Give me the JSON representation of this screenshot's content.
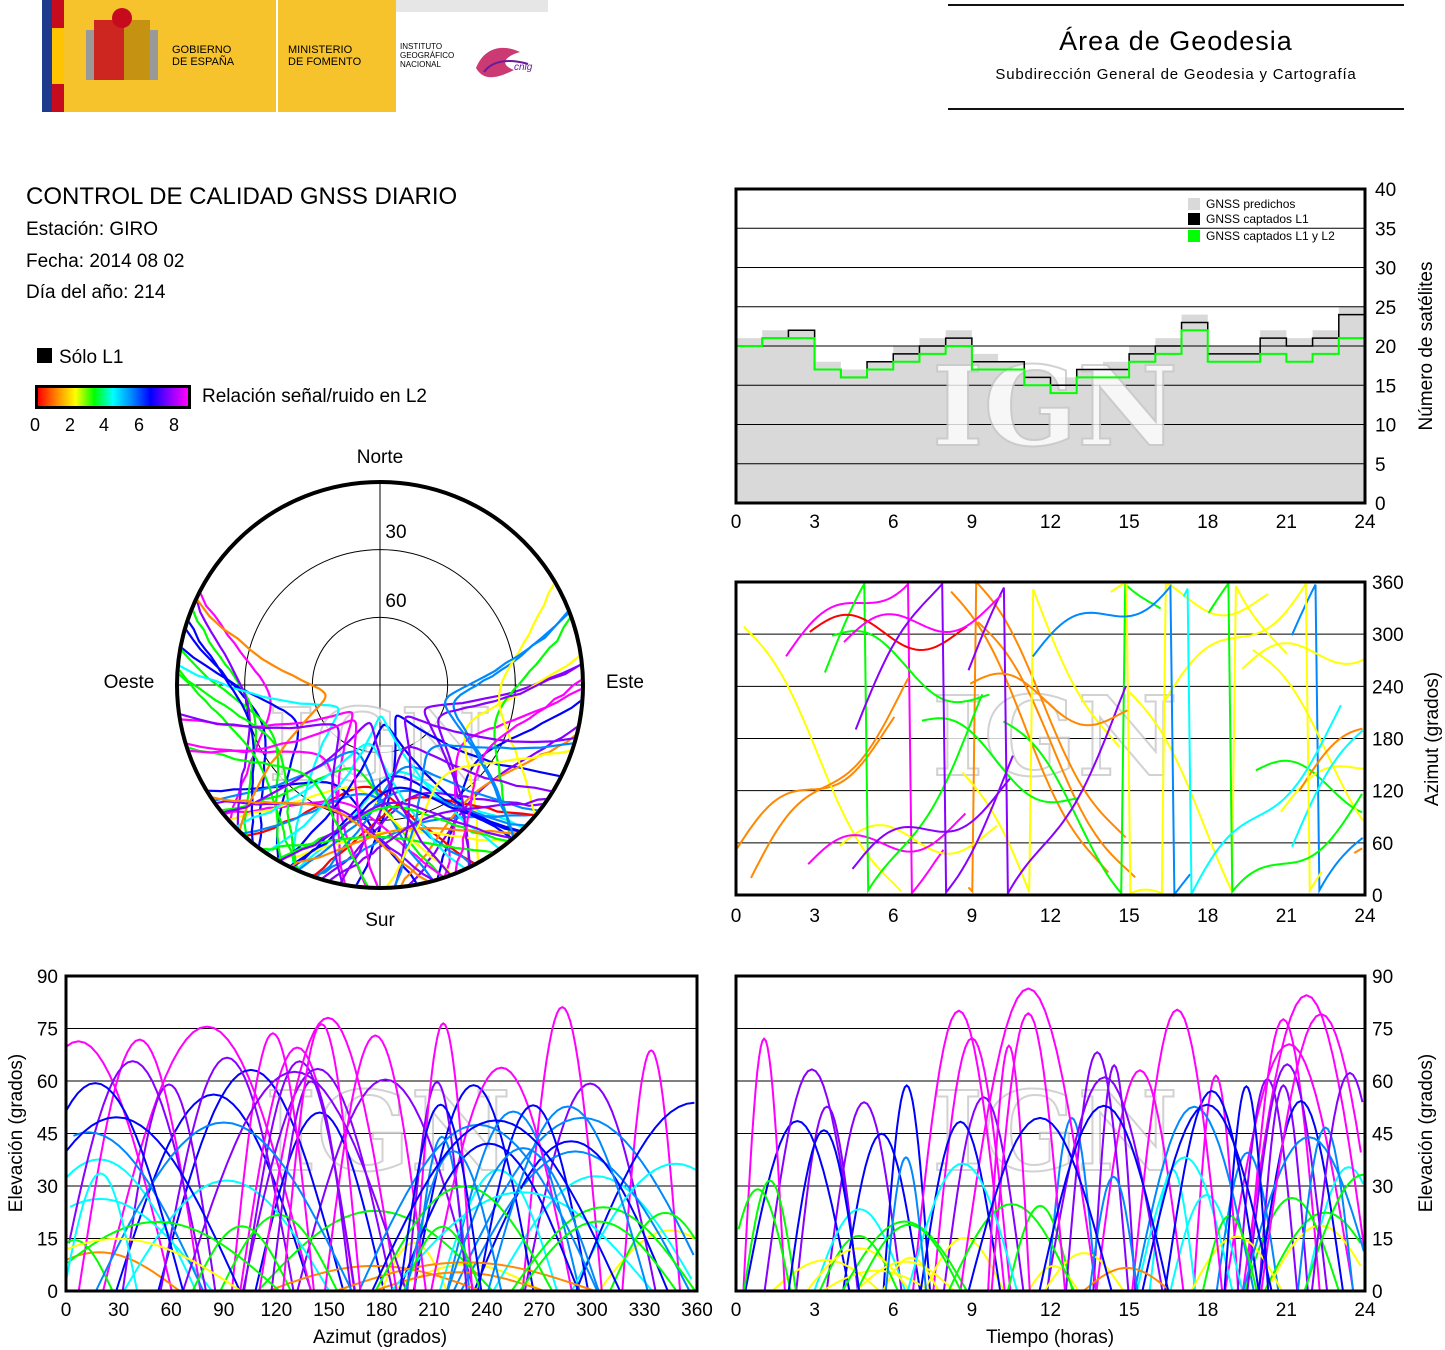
{
  "header": {
    "gobierno": "GOBIERNO\nDE ESPAÑA",
    "ministerio": "MINISTERIO\nDE FOMENTO",
    "instituto": "INSTITUTO\nGEOGRÁFICO\nNACIONAL",
    "cnig": "cnig",
    "area_title": "Área de Geodesia",
    "area_subtitle": "Subdirección General de Geodesia y Cartografía"
  },
  "info": {
    "title": "CONTROL DE CALIDAD GNSS DIARIO",
    "station": "Estación: GIRO",
    "date": "Fecha: 2014 08 02",
    "doy": "Día del año: 214"
  },
  "legend": {
    "solo_l1": "Sólo L1",
    "snr_label": "Relación señal/ruido en L2",
    "snr_ticks": [
      "0",
      "2",
      "4",
      "6",
      "8"
    ],
    "colors": [
      "#ff0000",
      "#ff8800",
      "#ffff00",
      "#00ff00",
      "#00ffff",
      "#0088ff",
      "#0000ff",
      "#8800ff",
      "#ff00ff"
    ]
  },
  "watermark": "IGN",
  "chart_data": [
    {
      "type": "polar",
      "name": "skyplot",
      "labels": {
        "north": "Norte",
        "south": "Sur",
        "east": "Este",
        "west": "Oeste"
      },
      "rings": [
        "30",
        "60"
      ]
    },
    {
      "type": "line",
      "name": "satellite-count",
      "ylabel": "Número de satélites",
      "xlim": [
        0,
        24
      ],
      "ylim": [
        0,
        40
      ],
      "xticks": [
        "0",
        "3",
        "6",
        "9",
        "12",
        "15",
        "18",
        "21",
        "24"
      ],
      "yticks": [
        "0",
        "5",
        "10",
        "15",
        "20",
        "25",
        "30",
        "35",
        "40"
      ],
      "legend": [
        "GNSS predichos",
        "GNSS captados L1",
        "GNSS captados L1 y L2"
      ],
      "legend_colors": [
        "#d9d9d9",
        "#000000",
        "#00ff00"
      ],
      "series": [
        {
          "name": "GNSS predichos",
          "x": [
            0,
            1,
            2,
            3,
            4,
            5,
            6,
            7,
            8,
            9,
            10,
            11,
            12,
            13,
            14,
            15,
            16,
            17,
            18,
            19,
            20,
            21,
            22,
            23,
            24
          ],
          "values": [
            21,
            22,
            22,
            18,
            17,
            18,
            20,
            21,
            22,
            19,
            18,
            17,
            16,
            17,
            18,
            20,
            21,
            24,
            20,
            20,
            22,
            21,
            22,
            25,
            25
          ]
        },
        {
          "name": "GNSS captados L1",
          "x": [
            0,
            1,
            2,
            3,
            4,
            5,
            6,
            7,
            8,
            9,
            10,
            11,
            12,
            13,
            14,
            15,
            16,
            17,
            18,
            19,
            20,
            21,
            22,
            23,
            24
          ],
          "values": [
            20,
            21,
            22,
            17,
            16,
            18,
            19,
            20,
            21,
            18,
            18,
            16,
            15,
            17,
            17,
            19,
            20,
            23,
            19,
            19,
            21,
            20,
            21,
            24,
            24
          ]
        },
        {
          "name": "GNSS captados L1 y L2",
          "x": [
            0,
            1,
            2,
            3,
            4,
            5,
            6,
            7,
            8,
            9,
            10,
            11,
            12,
            13,
            14,
            15,
            16,
            17,
            18,
            19,
            20,
            21,
            22,
            23,
            24
          ],
          "values": [
            20,
            21,
            21,
            17,
            16,
            17,
            18,
            19,
            20,
            17,
            17,
            15,
            14,
            16,
            16,
            18,
            19,
            22,
            18,
            18,
            19,
            18,
            19,
            21,
            22
          ]
        }
      ]
    },
    {
      "type": "scatter",
      "name": "azimuth-vs-time",
      "ylabel": "Azimut (grados)",
      "xlim": [
        0,
        24
      ],
      "ylim": [
        0,
        360
      ],
      "xticks": [
        "0",
        "3",
        "6",
        "9",
        "12",
        "15",
        "18",
        "21",
        "24"
      ],
      "yticks": [
        "0",
        "60",
        "120",
        "180",
        "240",
        "300",
        "360"
      ]
    },
    {
      "type": "scatter",
      "name": "elevation-vs-azimuth",
      "xlabel": "Azimut (grados)",
      "ylabel": "Elevación (grados)",
      "xlim": [
        0,
        360
      ],
      "ylim": [
        0,
        90
      ],
      "xticks": [
        "0",
        "30",
        "60",
        "90",
        "120",
        "150",
        "180",
        "210",
        "240",
        "270",
        "300",
        "330",
        "360"
      ],
      "yticks": [
        "0",
        "15",
        "30",
        "45",
        "60",
        "75",
        "90"
      ]
    },
    {
      "type": "scatter",
      "name": "elevation-vs-time",
      "xlabel": "Tiempo (horas)",
      "ylabel": "Elevación (grados)",
      "xlim": [
        0,
        24
      ],
      "ylim": [
        0,
        90
      ],
      "xticks": [
        "0",
        "3",
        "6",
        "9",
        "12",
        "15",
        "18",
        "21",
        "24"
      ],
      "yticks": [
        "0",
        "15",
        "30",
        "45",
        "60",
        "75",
        "90"
      ]
    }
  ]
}
